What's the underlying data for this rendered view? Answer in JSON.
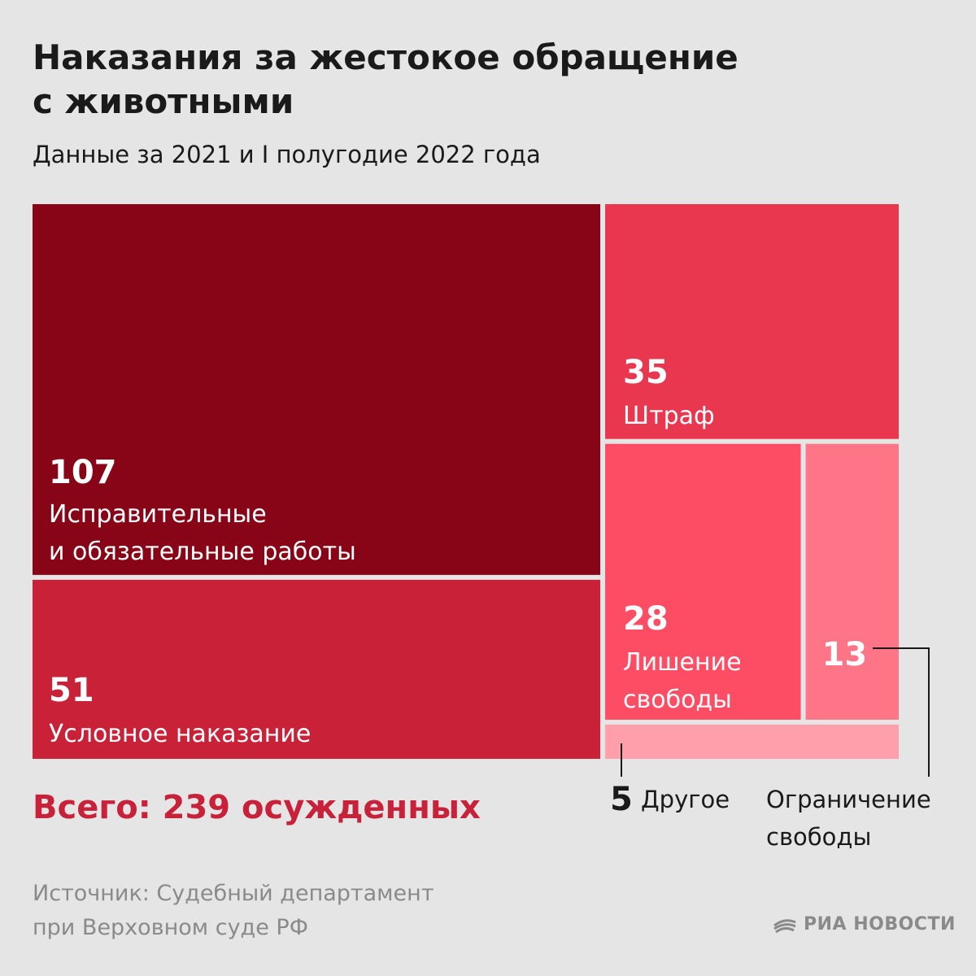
{
  "title_line1": "Наказания за жестокое обращение",
  "title_line2": "с животными",
  "subtitle": "Данные за 2021 и I полугодие 2022 года",
  "total": "Всего: 239 осужденных",
  "source_line1": "Источник: Судебный департамент",
  "source_line2": "при Верховном суде РФ",
  "logo_text": "РИА НОВОСТИ",
  "chart_data": {
    "type": "treemap",
    "total": 239,
    "items": [
      {
        "value": 107,
        "label_lines": [
          "Исправительные",
          "и обязательные работы"
        ],
        "color": "#870516"
      },
      {
        "value": 51,
        "label_lines": [
          "Условное наказание"
        ],
        "color": "#c92138"
      },
      {
        "value": 35,
        "label_lines": [
          "Штраф"
        ],
        "color": "#e8374e"
      },
      {
        "value": 28,
        "label_lines": [
          "Лишение",
          "свободы"
        ],
        "color": "#fc4d64"
      },
      {
        "value": 13,
        "label_lines": [
          "Ограничение",
          "свободы"
        ],
        "color": "#fe7587"
      },
      {
        "value": 5,
        "label_lines": [
          "Другое"
        ],
        "color": "#ff9fab"
      }
    ]
  }
}
